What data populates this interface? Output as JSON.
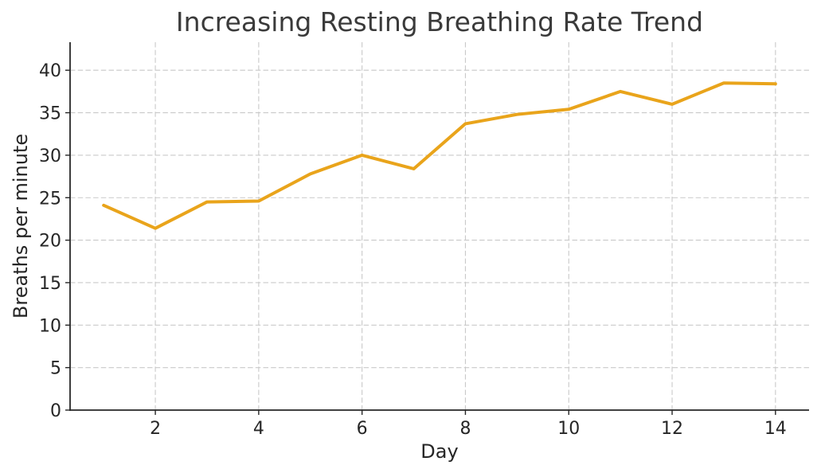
{
  "figure": {
    "title": "Increasing Resting Breathing Rate Trend",
    "xlabel": "Day",
    "ylabel": "Breaths per minute"
  },
  "chart_data": {
    "type": "line",
    "title": "Increasing Resting Breathing Rate Trend",
    "xlabel": "Day",
    "ylabel": "Breaths per minute",
    "x": [
      1,
      2,
      3,
      4,
      5,
      6,
      7,
      8,
      9,
      10,
      11,
      12,
      13,
      14
    ],
    "y": [
      24.1,
      21.4,
      24.5,
      24.6,
      27.8,
      30.0,
      28.4,
      33.7,
      34.8,
      35.4,
      37.5,
      36.0,
      38.5,
      38.4
    ],
    "xticks": [
      2,
      4,
      6,
      8,
      10,
      12,
      14
    ],
    "yticks": [
      0,
      5,
      10,
      15,
      20,
      25,
      30,
      35,
      40
    ],
    "xlim": [
      0.35,
      14.65
    ],
    "ylim": [
      0,
      43.3
    ],
    "grid": true,
    "grid_style": "dashed",
    "legend": "none",
    "colors": {
      "line": "#E9A41B",
      "grid": "#c9c9c9",
      "spine": "#262626",
      "tick_label": "#262626",
      "title_text": "#3a3a3a",
      "background": "#ffffff"
    }
  }
}
